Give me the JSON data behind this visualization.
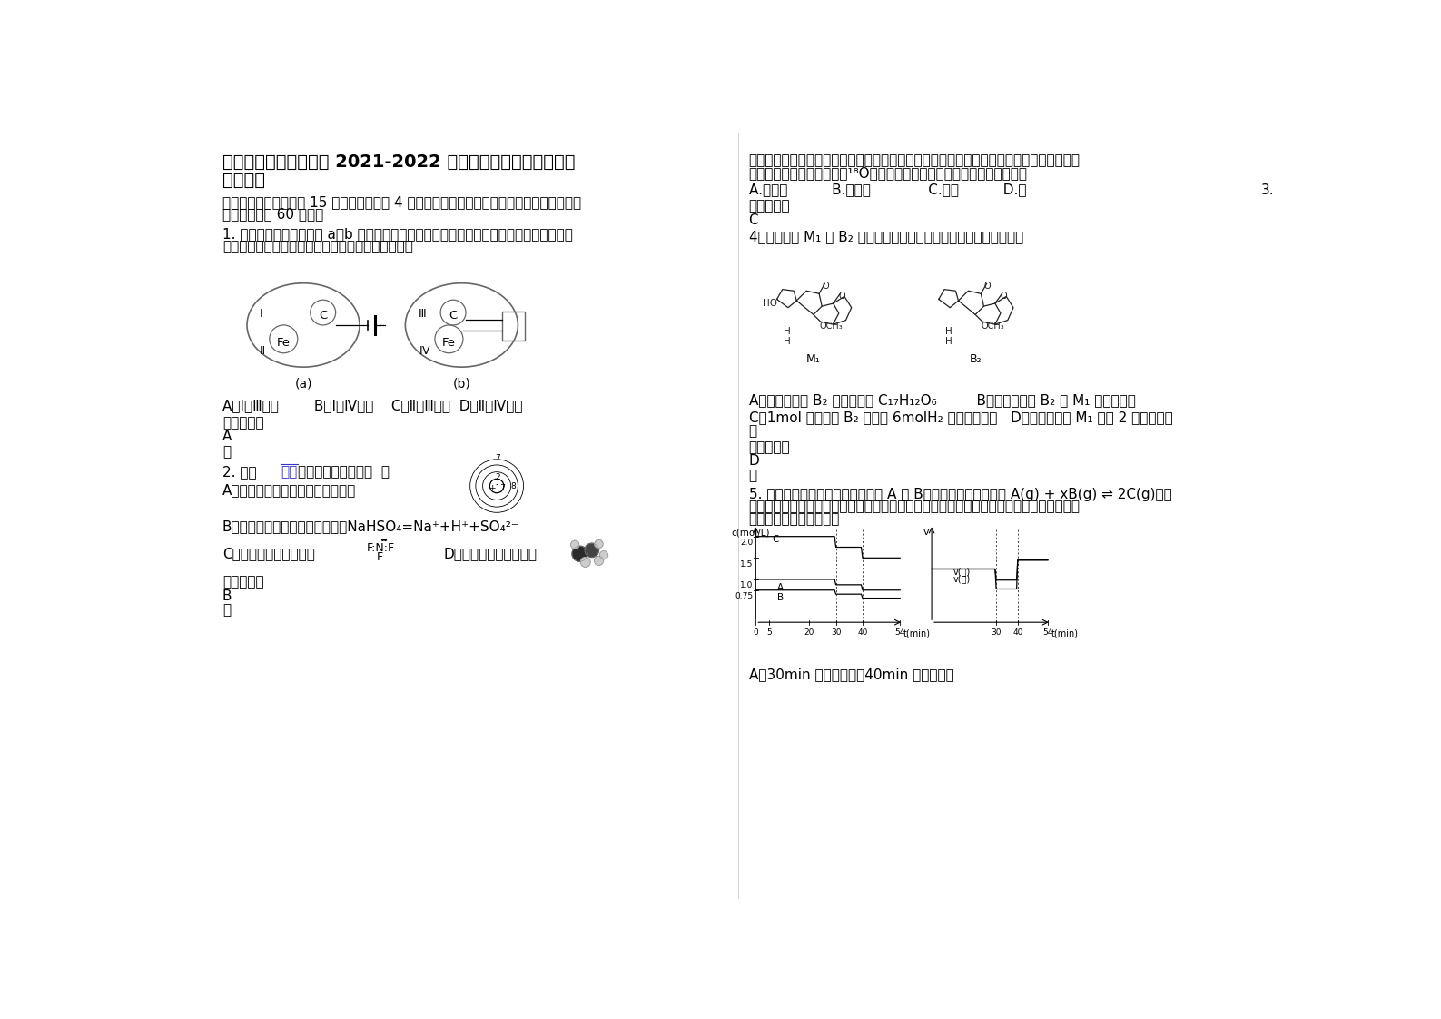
{
  "bg_color": "#ffffff",
  "title_line1": "云南省大理市上关中学 2021-2022 学年高三化学上学期期末试",
  "title_line2": "卷含解析",
  "section1": "一、单选题（本大题共 15 个小题，每小题 4 分。在每小题给出的四个选项中，只有一项符合",
  "section1b": "题目要求，共 60 分。）",
  "q1_text1": "1. 把石墨棒和铁片用下列 a、b 两种方式放在盛有稀食盐水和酚酞试液混合溶液的玻璃器皿",
  "q1_text2": "中，经过一段时间后，首先观察到溶液变红的区域是",
  "q1_options": "A．Ⅰ和Ⅲ附近        B．Ⅰ和Ⅳ附近    C．Ⅱ和Ⅲ附近  D．Ⅱ和Ⅳ附近",
  "q1_answer_label": "参考答案：",
  "q1_answer": "A",
  "q1_note": "略",
  "q2_prefix": "2. 下列",
  "q2_blue": "化学",
  "q2_suffix": "用语表示正确的是（  ）",
  "q2_A": "A．食盐中阴离子的结构示意图为：",
  "q2_B": "B．硫酸氢钠溶液的电离方程式：NaHSO₄=Na⁺+H⁺+SO₄²⁻",
  "q2_C": "C．三氟化氮的电子式：",
  "q2_D": "D．乙醇分子比例模型：",
  "q2_answer_label": "参考答案：",
  "q2_answer": "B",
  "q2_note": "略",
  "right_col_text1": "过氧化氢与硫酸酸化的高锰酸钾溶液进行反应生成硫酸钾、硫酸锰、水和氧气。如果过氧化",
  "right_col_text2": "氢中的氧原子是示踪原子（¹⁸O），当反应完成后，含有示踪原子的物质是",
  "right_col_options": "A.硫酸钾          B.硫酸锰             C.氧气          D.水",
  "right_num3": "3.",
  "right_ans_label": "参考答案：",
  "right_ans": "C",
  "q4_text": "4．黄曲霉素 M₁ 和 B₂ 的结构如下图所示，以下有关说法正确的是：",
  "q4_A": "A．黄曲霉毒素 B₂ 的分子式为 C₁₇H₁₂O₆         B．黄曲霉毒素 B₂ 和 M₁ 互为同系物",
  "q4_C": "C．1mol 黄曲霉素 B₂ 可以和 6molH₂ 发生加成反应   D．黄曲霉毒素 M₁ 含有 2 个手性碳原",
  "q4_D2": "子",
  "q4_ans_label": "参考答案：",
  "q4_ans": "D",
  "q4_note": "略",
  "q5_text1": "5. 某密闭容器中充入等物质的量的 A 和 B，一定温度下发生反应 A(g) + xB(g) ⇌ 2C(g)，达",
  "q5_text2": "到平衡后，只改变反应的一个条件，测得容器中物质的浓度、反应速率随时间变化如下图所",
  "q5_text3": "示。下列说法中正确的是",
  "q5_A": "A．30min 时降低温度，40min 时升高温度",
  "divider_color": "#cccccc",
  "blue_color": "#3333cc"
}
